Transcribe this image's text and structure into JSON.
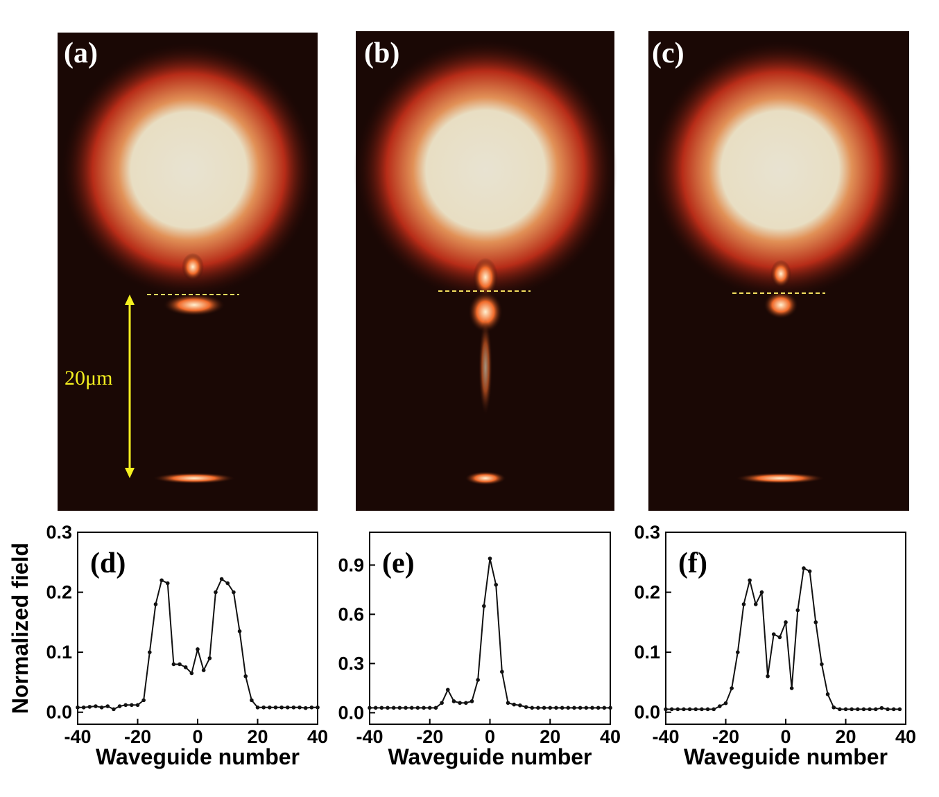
{
  "images": [
    {
      "label": "(a)",
      "scale_label": "20μm"
    },
    {
      "label": "(b)"
    },
    {
      "label": "(c)"
    }
  ],
  "chart_data": [
    {
      "type": "line",
      "label": "(d)",
      "ylabel": "Normalized field",
      "xlabel": "Waveguide number",
      "xlim": [
        -40,
        40
      ],
      "xticks": [
        -40,
        -20,
        0,
        20,
        40
      ],
      "ylim": [
        -0.02,
        0.3
      ],
      "yticks": [
        {
          "value": 0,
          "label": "0.0"
        },
        0.1,
        0.2,
        0.3
      ],
      "x": [
        -40,
        -38,
        -36,
        -34,
        -32,
        -30,
        -28,
        -26,
        -24,
        -22,
        -20,
        -18,
        -16,
        -14,
        -12,
        -10,
        -8,
        -6,
        -4,
        -2,
        0,
        2,
        4,
        6,
        8,
        10,
        12,
        14,
        16,
        18,
        20,
        22,
        24,
        26,
        28,
        30,
        32,
        34,
        36,
        38,
        40
      ],
      "values": [
        0.008,
        0.008,
        0.009,
        0.01,
        0.008,
        0.01,
        0.005,
        0.01,
        0.012,
        0.012,
        0.012,
        0.02,
        0.1,
        0.18,
        0.22,
        0.215,
        0.08,
        0.08,
        0.075,
        0.065,
        0.105,
        0.07,
        0.09,
        0.2,
        0.222,
        0.215,
        0.2,
        0.135,
        0.06,
        0.02,
        0.008,
        0.008,
        0.008,
        0.008,
        0.008,
        0.008,
        0.008,
        0.008,
        0.007,
        0.008,
        0.008
      ],
      "color": "#111111"
    },
    {
      "type": "line",
      "label": "(e)",
      "xlabel": "Waveguide number",
      "xlim": [
        -40,
        40
      ],
      "xticks": [
        -40,
        -20,
        0,
        20,
        40
      ],
      "ylim": [
        -0.07,
        1.1
      ],
      "yticks": [
        {
          "value": 0,
          "label": "0.0"
        },
        0.3,
        0.6,
        0.9
      ],
      "x": [
        -40,
        -38,
        -36,
        -34,
        -32,
        -30,
        -28,
        -26,
        -24,
        -22,
        -20,
        -18,
        -16,
        -14,
        -12,
        -10,
        -8,
        -6,
        -4,
        -2,
        0,
        2,
        4,
        6,
        8,
        10,
        12,
        14,
        16,
        18,
        20,
        22,
        24,
        26,
        28,
        30,
        32,
        34,
        36,
        38,
        40
      ],
      "values": [
        0.03,
        0.03,
        0.03,
        0.03,
        0.03,
        0.03,
        0.03,
        0.03,
        0.03,
        0.03,
        0.03,
        0.03,
        0.06,
        0.14,
        0.07,
        0.06,
        0.06,
        0.07,
        0.2,
        0.65,
        0.94,
        0.78,
        0.25,
        0.06,
        0.05,
        0.045,
        0.035,
        0.03,
        0.03,
        0.03,
        0.03,
        0.03,
        0.03,
        0.03,
        0.03,
        0.03,
        0.03,
        0.03,
        0.03,
        0.03,
        0.03
      ],
      "color": "#111111"
    },
    {
      "type": "line",
      "label": "(f)",
      "xlabel": "Waveguide number",
      "xlim": [
        -40,
        40
      ],
      "xticks": [
        -40,
        -20,
        0,
        20,
        40
      ],
      "ylim": [
        -0.02,
        0.3
      ],
      "yticks": [
        {
          "value": 0,
          "label": "0.0"
        },
        0.1,
        0.2,
        0.3
      ],
      "x": [
        -40,
        -38,
        -36,
        -34,
        -32,
        -30,
        -28,
        -26,
        -24,
        -22,
        -20,
        -18,
        -16,
        -14,
        -12,
        -10,
        -8,
        -6,
        -4,
        -2,
        0,
        2,
        4,
        6,
        8,
        10,
        12,
        14,
        16,
        18,
        20,
        22,
        24,
        26,
        28,
        30,
        32,
        34,
        36,
        38
      ],
      "values": [
        0.005,
        0.005,
        0.005,
        0.005,
        0.005,
        0.005,
        0.005,
        0.005,
        0.005,
        0.01,
        0.015,
        0.04,
        0.1,
        0.18,
        0.22,
        0.18,
        0.2,
        0.06,
        0.13,
        0.125,
        0.15,
        0.04,
        0.17,
        0.24,
        0.235,
        0.15,
        0.08,
        0.03,
        0.008,
        0.005,
        0.005,
        0.005,
        0.005,
        0.005,
        0.005,
        0.005,
        0.007,
        0.005,
        0.005,
        0.005
      ],
      "color": "#111111"
    }
  ]
}
